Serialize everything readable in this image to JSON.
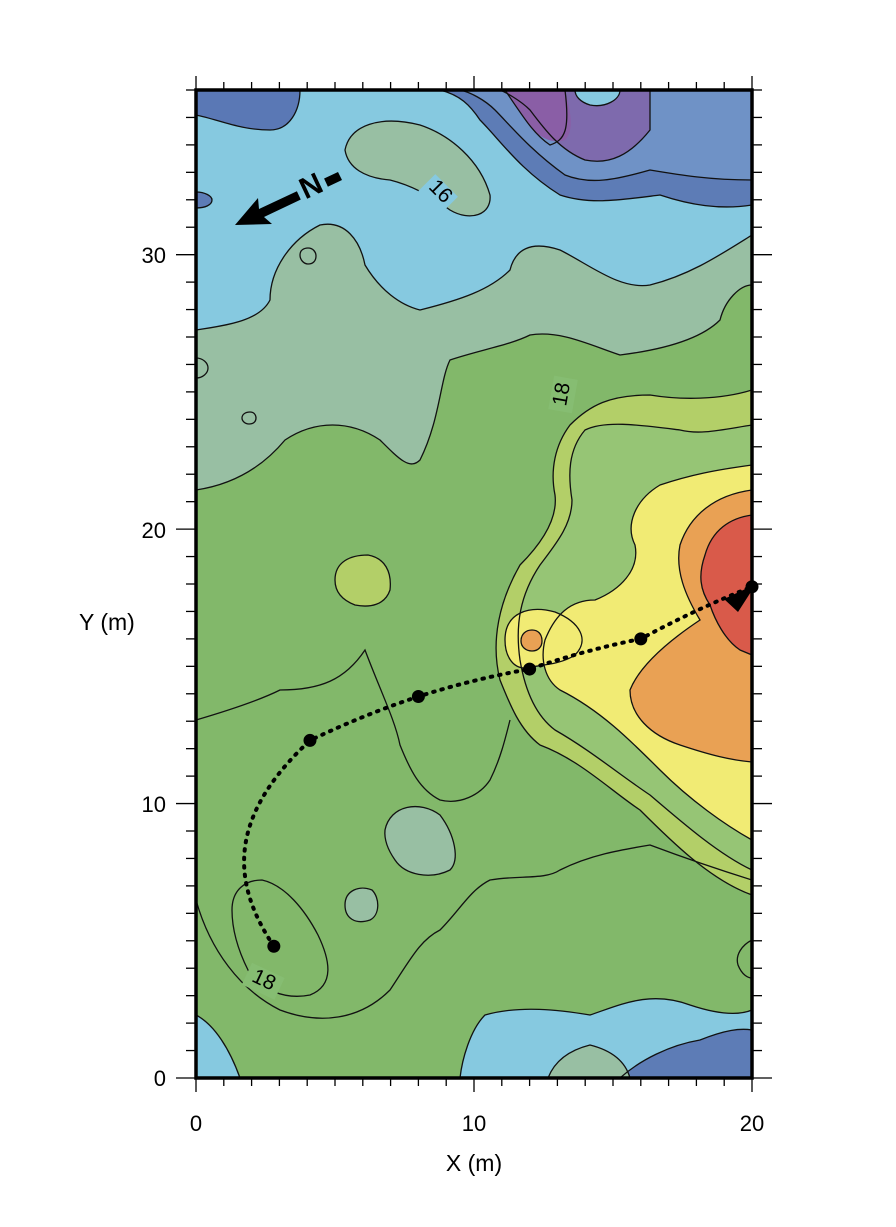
{
  "chart_data": {
    "type": "contour",
    "xlabel": "X (m)",
    "ylabel": "Y (m)",
    "xlim": [
      0,
      20
    ],
    "ylim": [
      0,
      36
    ],
    "x_ticks": [
      0,
      10,
      20
    ],
    "y_ticks": [
      0,
      10,
      20,
      30
    ],
    "x_tick_labels": [
      "0",
      "10",
      "20"
    ],
    "y_tick_labels": [
      "0",
      "10",
      "20",
      "30"
    ],
    "contour_labels": [
      "16",
      "18",
      "18"
    ],
    "north_arrow": "N",
    "path_points": [
      {
        "x": 2.8,
        "y": 4.8
      },
      {
        "x": 4.1,
        "y": 12.3
      },
      {
        "x": 8.0,
        "y": 13.9
      },
      {
        "x": 12.0,
        "y": 14.9
      },
      {
        "x": 16.0,
        "y": 16.0
      },
      {
        "x": 20.0,
        "y": 17.9
      }
    ],
    "colors": {
      "level_deep_purple": "#8a64a8",
      "level_dark_blue": "#4f6ca8",
      "level_mid_blue": "#6a8fc4",
      "level_light_blue": "#86c9e0",
      "level_teal": "#98bfa3",
      "level_green_light": "#8ebc7e",
      "level_green": "#7fb463",
      "level_yellow_green": "#b3cf68",
      "level_yellow": "#f1eb74",
      "level_orange": "#e79e52",
      "level_red": "#d85a4a"
    }
  }
}
